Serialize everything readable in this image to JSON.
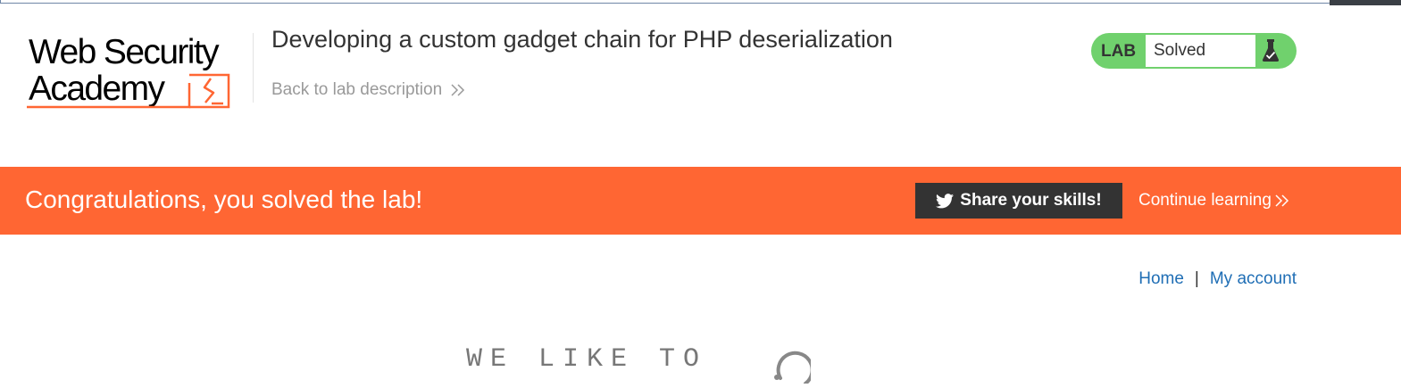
{
  "logo": {
    "line1": "Web Security",
    "line2": "Academy"
  },
  "lab": {
    "title": "Developing a custom gadget chain for PHP deserialization",
    "back_link": "Back to lab description",
    "status_tag": "LAB",
    "status_value": "Solved"
  },
  "banner": {
    "message": "Congratulations, you solved the lab!",
    "share_label": "Share your skills!",
    "continue_label": "Continue learning"
  },
  "nav": {
    "home": "Home",
    "separator": "|",
    "account": "My account"
  },
  "blog": {
    "heading": "WE LIKE TO"
  },
  "colors": {
    "accent_orange": "#ff6633",
    "status_green": "#70d16d",
    "link_blue": "#1f6eb5",
    "dark_button": "#333333"
  },
  "icons": {
    "logo_mark": "academy-logo-icon",
    "back_chevron": "double-chevron-right-icon",
    "flask": "flask-check-icon",
    "twitter": "twitter-icon",
    "loader": "loading-spinner-icon"
  }
}
